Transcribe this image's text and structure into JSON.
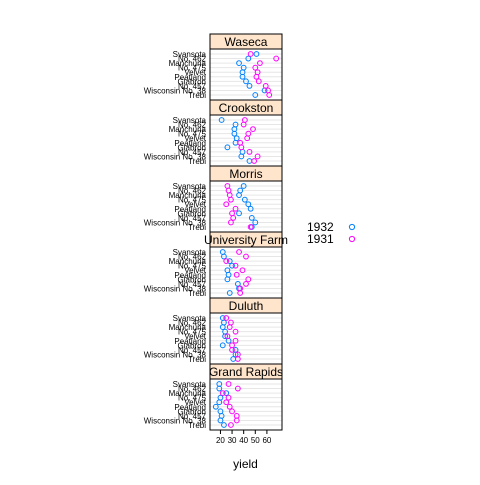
{
  "chart_data": {
    "type": "scatter",
    "xlabel": "yield",
    "xlim": [
      11,
      73
    ],
    "xticks": [
      20,
      30,
      40,
      50,
      60
    ],
    "categories": [
      "Trebi",
      "Wisconsin No. 38",
      "No. 457",
      "Glabron",
      "Peatland",
      "Velvet",
      "No. 475",
      "Manchuria",
      "No. 462",
      "Svansota"
    ],
    "legend_position": "right",
    "series": [
      {
        "name": "1932",
        "color": "#0080ff"
      },
      {
        "name": "1931",
        "color": "#ff00ff"
      }
    ],
    "panels": [
      {
        "site": "Waseca",
        "y1932": [
          50,
          58,
          45,
          42,
          39,
          39,
          40,
          36,
          44,
          51
        ],
        "y1931": [
          62,
          61,
          59,
          53,
          51,
          52,
          50,
          54,
          68,
          46
        ]
      },
      {
        "site": "Crookston",
        "y1932": [
          45,
          38,
          39,
          26,
          33,
          34,
          32,
          32,
          33,
          21
        ],
        "y1931": [
          49,
          52,
          45,
          38,
          37,
          43,
          44,
          48,
          40,
          41
        ]
      },
      {
        "site": "Morris",
        "y1932": [
          47,
          50,
          47,
          36,
          46,
          44,
          41,
          36,
          37,
          40
        ],
        "y1931": [
          46,
          29,
          31,
          30,
          33,
          25,
          29,
          28,
          27,
          26
        ]
      },
      {
        "site": "University Farm",
        "y1932": [
          28,
          36,
          35,
          26,
          27,
          26,
          30,
          28,
          23,
          22
        ],
        "y1931": [
          37,
          37,
          42,
          44,
          34,
          39,
          33,
          25,
          42,
          36
        ]
      },
      {
        "site": "Duluth",
        "y1932": [
          31,
          33,
          33,
          22,
          27,
          24,
          24,
          22,
          23,
          22
        ],
        "y1931": [
          35,
          35,
          30,
          30,
          33,
          26,
          33,
          28,
          29,
          25
        ]
      },
      {
        "site": "Grand Rapids",
        "y1932": [
          23,
          20,
          21,
          20,
          16,
          19,
          20,
          25,
          19,
          19
        ],
        "y1931": [
          29,
          34,
          34,
          30,
          28,
          25,
          27,
          22,
          35,
          27
        ]
      }
    ]
  }
}
